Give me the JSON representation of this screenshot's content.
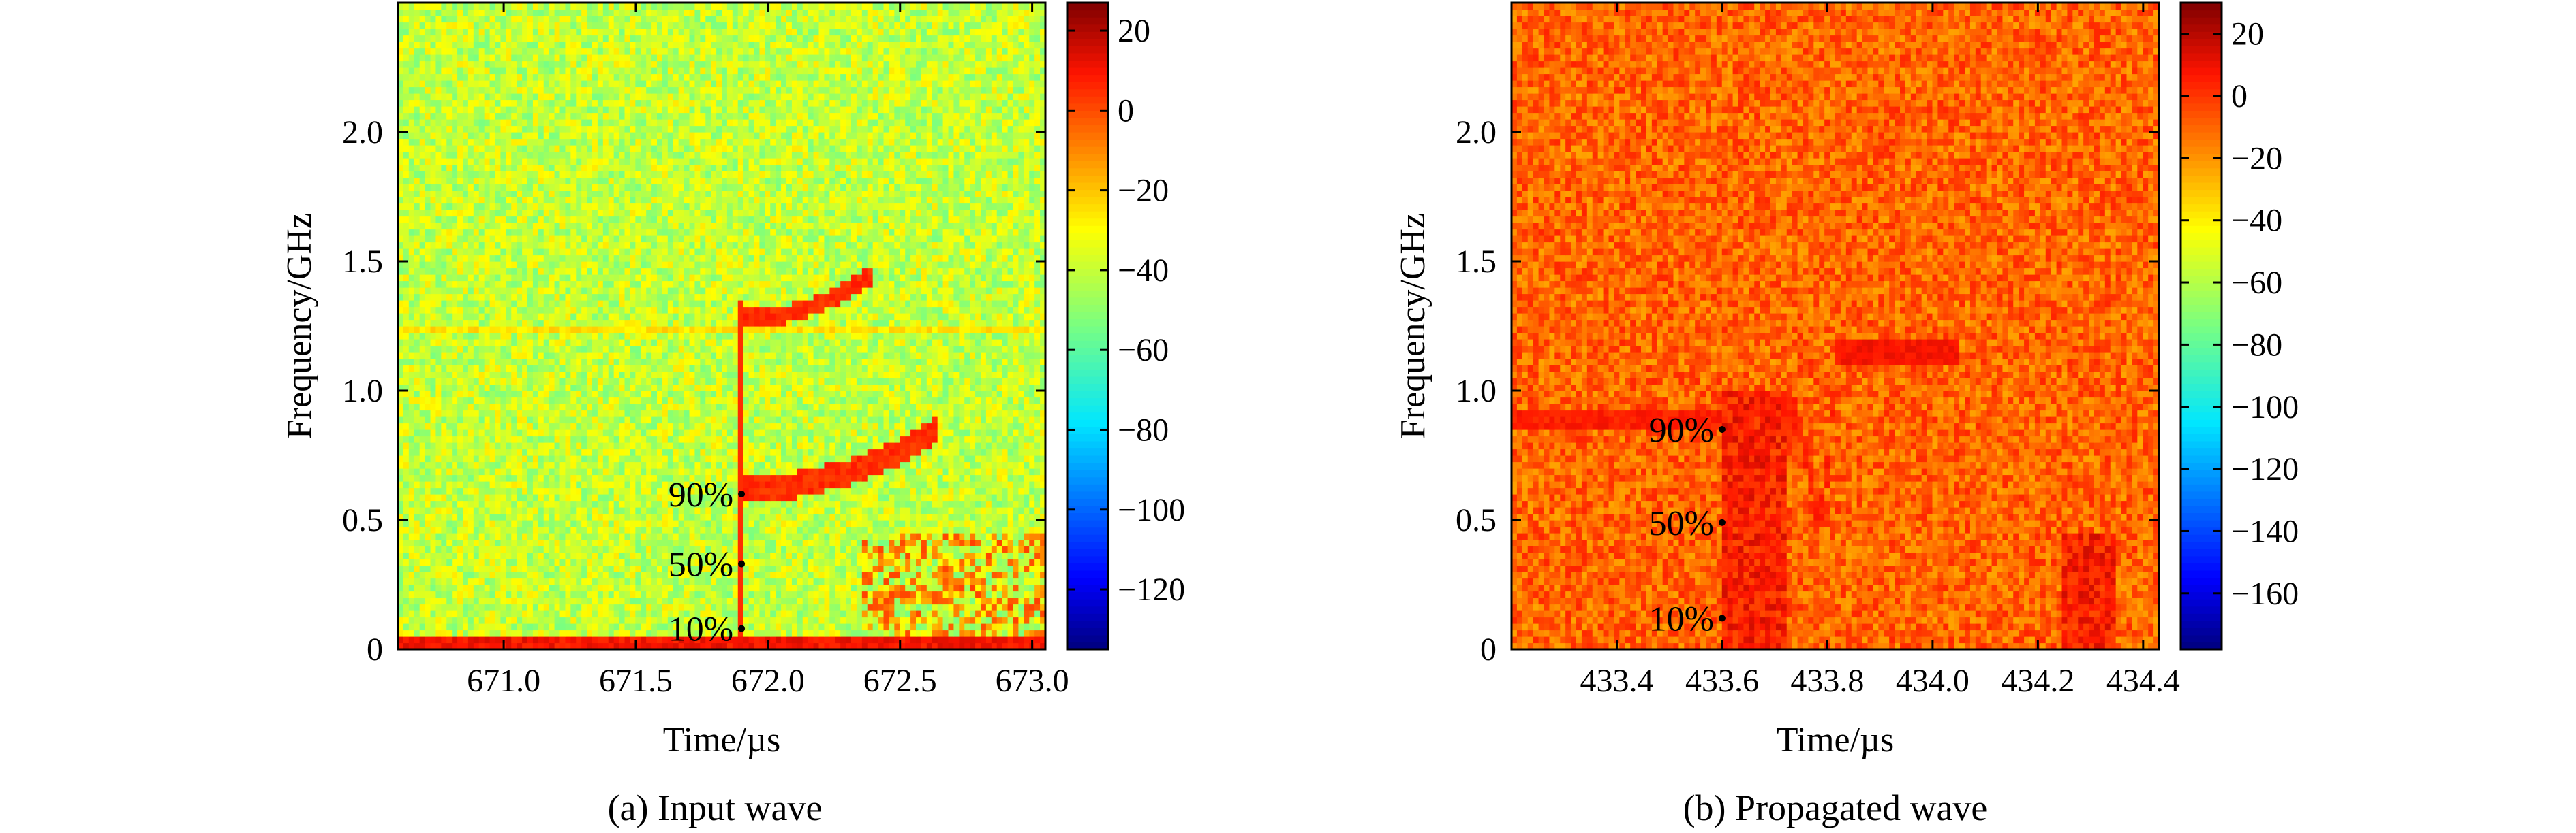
{
  "figure": {
    "captions": [
      "(a) Input wave",
      "(b) Propagated wave"
    ]
  },
  "chart_data": [
    {
      "type": "heatmap",
      "name": "input-wave",
      "caption": "(a) Input wave",
      "xlabel": "Time/µs",
      "ylabel": "Frequency/GHz",
      "xlim": [
        670.6,
        673.05
      ],
      "ylim": [
        0,
        2.5
      ],
      "xticks": [
        671.0,
        671.5,
        672.0,
        672.5,
        673.0
      ],
      "xtick_labels": [
        "671.0",
        "671.5",
        "672.0",
        "672.5",
        "673.0"
      ],
      "yticks": [
        0,
        0.5,
        1.0,
        1.5,
        2.0
      ],
      "ytick_labels": [
        "0",
        "0.5",
        "1.0",
        "1.5",
        "2.0"
      ],
      "colorbar": {
        "range": [
          -135,
          27
        ],
        "ticks": [
          20,
          0,
          -20,
          -40,
          -60,
          -80,
          -100,
          -120
        ],
        "tick_labels": [
          "20",
          "0",
          "−20",
          "−40",
          "−60",
          "−80",
          "−100",
          "−120"
        ]
      },
      "background_level_db": -40,
      "features": [
        {
          "kind": "band",
          "t": [
            670.6,
            673.05
          ],
          "f": [
            0.0,
            0.06
          ],
          "level_db": 10
        },
        {
          "kind": "band",
          "t": [
            670.6,
            673.05
          ],
          "f": [
            1.22,
            1.26
          ],
          "level_db": -25
        },
        {
          "kind": "ridge",
          "t": [
            671.9,
            672.4
          ],
          "f": [
            1.28,
            1.45
          ],
          "width": 0.07,
          "level_db": 5
        },
        {
          "kind": "ridge",
          "t": [
            671.9,
            672.65
          ],
          "f": [
            0.62,
            0.85
          ],
          "width": 0.1,
          "level_db": 5
        },
        {
          "kind": "line",
          "t": 671.9,
          "f": [
            0.05,
            1.35
          ],
          "level_db": 5
        },
        {
          "kind": "blob",
          "t": [
            672.35,
            673.05
          ],
          "f": [
            0.0,
            0.45
          ],
          "level_db": -8
        }
      ],
      "annotations": [
        {
          "label": "90%",
          "t": 671.9,
          "f": 0.6
        },
        {
          "label": "50%",
          "t": 671.9,
          "f": 0.33
        },
        {
          "label": "10%",
          "t": 671.9,
          "f": 0.08
        }
      ]
    },
    {
      "type": "heatmap",
      "name": "propagated-wave",
      "caption": "(b) Propagated wave",
      "xlabel": "Time/µs",
      "ylabel": "Frequency/GHz",
      "xlim": [
        433.2,
        434.43
      ],
      "ylim": [
        0,
        2.5
      ],
      "xticks": [
        433.4,
        433.6,
        433.8,
        434.0,
        434.2,
        434.4
      ],
      "xtick_labels": [
        "433.4",
        "433.6",
        "433.8",
        "434.0",
        "434.2",
        "434.4"
      ],
      "yticks": [
        0,
        0.5,
        1.0,
        1.5,
        2.0
      ],
      "ytick_labels": [
        "0",
        "0.5",
        "1.0",
        "1.5",
        "2.0"
      ],
      "colorbar": {
        "range": [
          -178,
          30
        ],
        "ticks": [
          20,
          0,
          -20,
          -40,
          -60,
          -80,
          -100,
          -120,
          -140,
          -160
        ],
        "tick_labels": [
          "20",
          "0",
          "−20",
          "−40",
          "−60",
          "−80",
          "−100",
          "−120",
          "−140",
          "−160"
        ]
      },
      "background_level_db": -10,
      "features": [
        {
          "kind": "band",
          "t": [
            433.2,
            433.6
          ],
          "f": [
            0.85,
            0.92
          ],
          "level_db": 5
        },
        {
          "kind": "rect",
          "t": [
            433.6,
            433.72
          ],
          "f": [
            0.0,
            1.0
          ],
          "level_db": 5
        },
        {
          "kind": "ridge",
          "t": [
            433.72,
            433.78
          ],
          "f": [
            0.95,
            0.5
          ],
          "width": 0.12,
          "level_db": 5
        },
        {
          "kind": "ridge",
          "t": [
            433.78,
            433.82
          ],
          "f": [
            0.5,
            1.3
          ],
          "width": 0.12,
          "level_db": 5
        },
        {
          "kind": "ridge",
          "t": [
            433.82,
            434.05
          ],
          "f": [
            1.15,
            1.15
          ],
          "width": 0.12,
          "level_db": 8
        },
        {
          "kind": "rect",
          "t": [
            434.25,
            434.35
          ],
          "f": [
            0.0,
            0.45
          ],
          "level_db": 5
        },
        {
          "kind": "line",
          "t": 434.39,
          "f": [
            0.0,
            2.5
          ],
          "level_db": -30
        }
      ],
      "annotations": [
        {
          "label": "90%",
          "t": 433.6,
          "f": 0.85
        },
        {
          "label": "50%",
          "t": 433.6,
          "f": 0.49
        },
        {
          "label": "10%",
          "t": 433.6,
          "f": 0.12
        }
      ]
    }
  ]
}
